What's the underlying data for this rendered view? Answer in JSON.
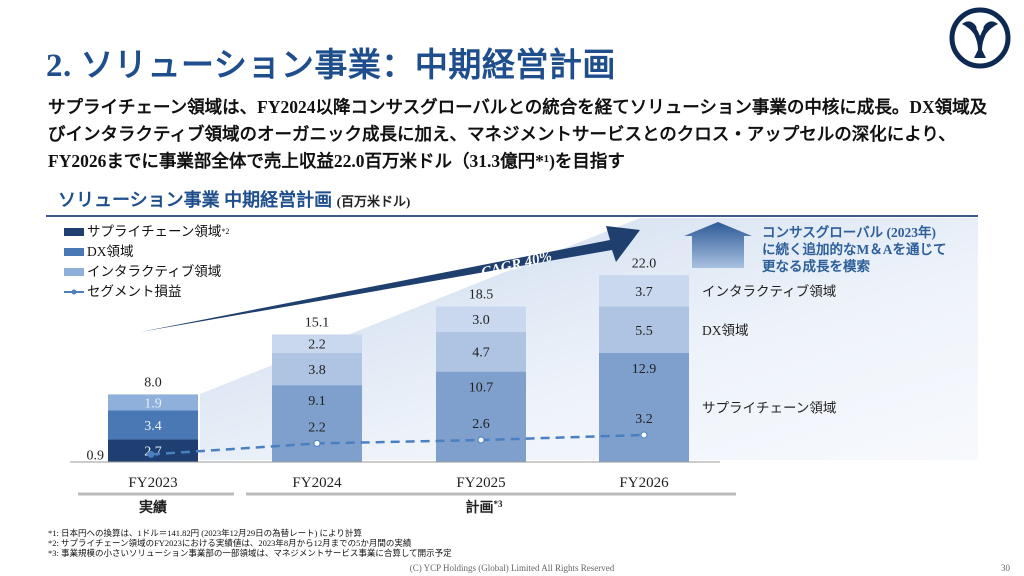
{
  "header": {
    "title": "2. ソリューション事業：中期経営計画",
    "lead": "サプライチェーン領域は、FY2024以降コンサスグローバルとの統合を経てソリューション事業の中核に成長。DX領域及びインタラクティブ領域のオーガニック成長に加え、マネジメントサービスとのクロス・アップセルの深化により、FY2026までに事業部全体で売上収益22.0百万米ドル（31.3億円*¹)を目指す"
  },
  "logo": {
    "icon": "ycp-logo",
    "color": "#0f2a52"
  },
  "chart_data": {
    "type": "bar",
    "stacked": true,
    "title": "ソリューション事業 中期経営計画",
    "unit": "(百万米ドル)",
    "categories": [
      "FY2023",
      "FY2024",
      "FY2025",
      "FY2026"
    ],
    "series": [
      {
        "name": "サプライチェーン領域",
        "note": "*2",
        "values": [
          2.7,
          9.1,
          10.7,
          12.9
        ],
        "color": "#1f3f73"
      },
      {
        "name": "DX領域",
        "values": [
          3.4,
          3.8,
          4.7,
          5.5
        ],
        "color": "#4a78b5"
      },
      {
        "name": "インタラクティブ領域",
        "values": [
          1.9,
          2.2,
          3.0,
          3.7
        ],
        "color": "#8fb0da"
      }
    ],
    "totals": [
      "8.0",
      "15.1",
      "18.5",
      "22.0"
    ],
    "line": {
      "name": "セグメント損益",
      "type": "line",
      "values": [
        0.9,
        2.2,
        2.6,
        3.2
      ],
      "color": "#4a7fc0"
    },
    "arrow_label": "CAGR 40%",
    "side_labels": [
      "インタラクティブ領域",
      "DX領域",
      "サプライチェーン領域"
    ],
    "groups": [
      {
        "label": "実績"
      },
      {
        "label": "計画",
        "note": "*3"
      }
    ],
    "annotation": [
      "コンサスグローバル (2023年)",
      "に続く追加的なM＆Aを通じて",
      "更なる成長を模索"
    ]
  },
  "footnotes": [
    "*1: 日本円への換算は、1ドル＝141.82円 (2023年12月29日の為替レート) により計算",
    "*2: サプライチェーン領域のFY2023における実績値は、2023年8月から12月までの5か月間の実績",
    "*3: 事業規模の小さいソリューション事業部の一部領域は、マネジメントサービス事業に合算して開示予定"
  ],
  "copyright": "(C) YCP Holdings (Global) Limited All Rights Reserved",
  "page_number": "30"
}
